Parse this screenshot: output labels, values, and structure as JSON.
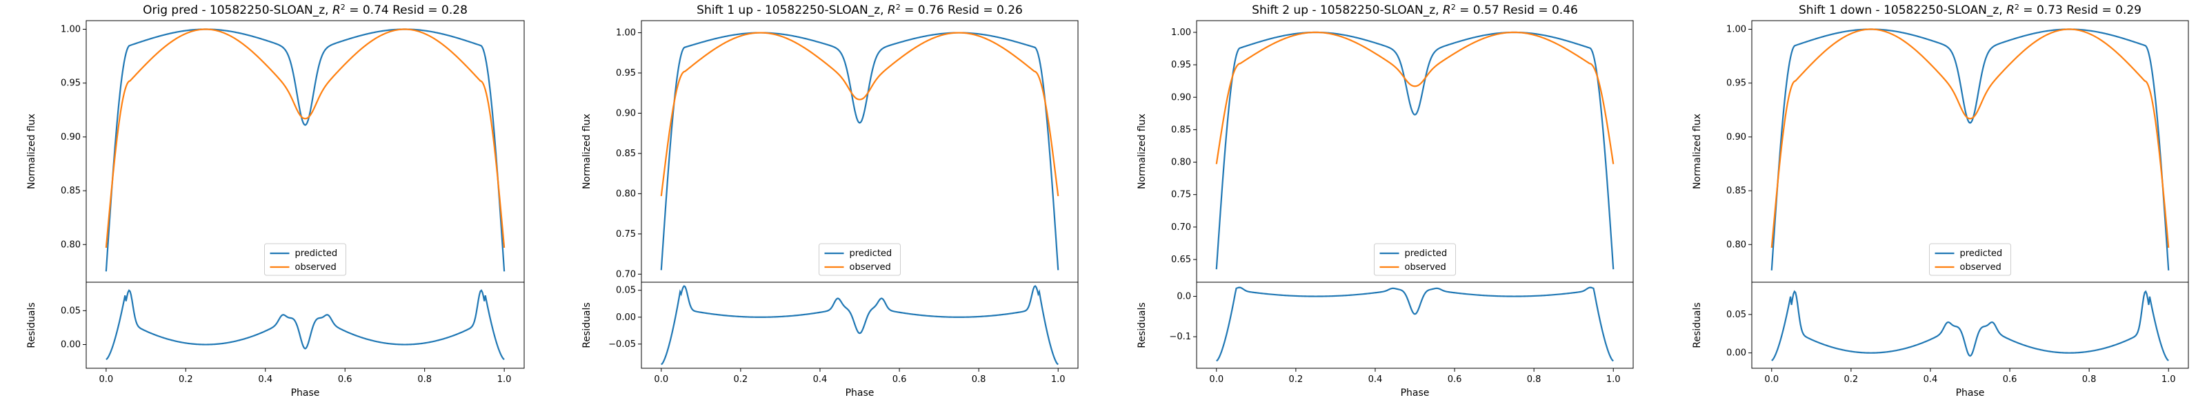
{
  "chart_data": [
    {
      "type": "line",
      "title": "Orig pred - 10582250-SLOAN_z, R² = 0.74 Resid = 0.28",
      "title_parts": {
        "pre": "Orig pred - 10582250-SLOAN_z, ",
        "r": "R",
        "sup": "2",
        "post": " = 0.74 Resid = 0.28"
      },
      "xlabel": "Phase",
      "top": {
        "ylabel": "Normalized flux",
        "ylim": [
          0.765,
          1.008
        ],
        "yticks": [
          0.8,
          0.85,
          0.9,
          0.95,
          1.0
        ],
        "ytick_labels": [
          "0.80",
          "0.85",
          "0.90",
          "0.95",
          "1.00"
        ],
        "series": [
          {
            "name": "predicted",
            "color": "#1f77b4",
            "dip": 0.911,
            "edge": 0.775,
            "shoulder": 0.985
          },
          {
            "name": "observed",
            "color": "#ff7f0e",
            "dip": 0.917,
            "edge": 0.797,
            "shoulder": 0.952
          }
        ]
      },
      "residual": {
        "ylabel": "Residuals",
        "ylim": [
          -0.035,
          0.092
        ],
        "yticks": [
          0.0,
          0.05
        ],
        "ytick_labels": [
          "0.00",
          "0.05"
        ],
        "dip": -0.006,
        "peak": 0.08,
        "shoulder": 0.04,
        "inner": 0.044,
        "edge": -0.022
      },
      "xlim": [
        -0.05,
        1.05
      ],
      "xticks": [
        0.0,
        0.2,
        0.4,
        0.6,
        0.8,
        1.0
      ],
      "xtick_labels": [
        "0.0",
        "0.2",
        "0.4",
        "0.6",
        "0.8",
        "1.0"
      ],
      "legend_location": "lower center"
    },
    {
      "type": "line",
      "title": "Shift 1 up - 10582250-SLOAN_z, R² = 0.76 Resid = 0.26",
      "title_parts": {
        "pre": "Shift 1 up - 10582250-SLOAN_z, ",
        "r": "R",
        "sup": "2",
        "post": " = 0.76 Resid = 0.26"
      },
      "xlabel": "Phase",
      "top": {
        "ylabel": "Normalized flux",
        "ylim": [
          0.69,
          1.015
        ],
        "yticks": [
          0.7,
          0.75,
          0.8,
          0.85,
          0.9,
          0.95,
          1.0
        ],
        "ytick_labels": [
          "0.70",
          "0.75",
          "0.80",
          "0.85",
          "0.90",
          "0.95",
          "1.00"
        ],
        "series": [
          {
            "name": "predicted",
            "color": "#1f77b4",
            "dip": 0.888,
            "edge": 0.705,
            "shoulder": 0.982
          },
          {
            "name": "observed",
            "color": "#ff7f0e",
            "dip": 0.917,
            "edge": 0.797,
            "shoulder": 0.952
          }
        ]
      },
      "residual": {
        "ylabel": "Residuals",
        "ylim": [
          -0.095,
          0.065
        ],
        "yticks": [
          -0.05,
          0.0,
          0.05
        ],
        "ytick_labels": [
          "−0.05",
          "0.00",
          "0.05"
        ],
        "dip": -0.03,
        "peak": 0.058,
        "shoulder": 0.018,
        "inner": 0.035,
        "edge": -0.088
      },
      "xlim": [
        -0.05,
        1.05
      ],
      "xticks": [
        0.0,
        0.2,
        0.4,
        0.6,
        0.8,
        1.0
      ],
      "xtick_labels": [
        "0.0",
        "0.2",
        "0.4",
        "0.6",
        "0.8",
        "1.0"
      ],
      "legend_location": "lower center"
    },
    {
      "type": "line",
      "title": "Shift 2 up - 10582250-SLOAN_z, R² = 0.57 Resid = 0.46",
      "title_parts": {
        "pre": "Shift 2 up - 10582250-SLOAN_z, ",
        "r": "R",
        "sup": "2",
        "post": " = 0.57 Resid = 0.46"
      },
      "xlabel": "Phase",
      "top": {
        "ylabel": "Normalized flux",
        "ylim": [
          0.615,
          1.018
        ],
        "yticks": [
          0.65,
          0.7,
          0.75,
          0.8,
          0.85,
          0.9,
          0.95,
          1.0
        ],
        "ytick_labels": [
          "0.65",
          "0.70",
          "0.75",
          "0.80",
          "0.85",
          "0.90",
          "0.95",
          "1.00"
        ],
        "series": [
          {
            "name": "predicted",
            "color": "#1f77b4",
            "dip": 0.873,
            "edge": 0.635,
            "shoulder": 0.976
          },
          {
            "name": "observed",
            "color": "#ff7f0e",
            "dip": 0.917,
            "edge": 0.797,
            "shoulder": 0.952
          }
        ]
      },
      "residual": {
        "ylabel": "Residuals",
        "ylim": [
          -0.178,
          0.035
        ],
        "yticks": [
          -0.1,
          0.0
        ],
        "ytick_labels": [
          "−0.1",
          "0.0"
        ],
        "dip": -0.044,
        "peak": 0.022,
        "shoulder": 0.018,
        "inner": 0.02,
        "edge": -0.16
      },
      "xlim": [
        -0.05,
        1.05
      ],
      "xticks": [
        0.0,
        0.2,
        0.4,
        0.6,
        0.8,
        1.0
      ],
      "xtick_labels": [
        "0.0",
        "0.2",
        "0.4",
        "0.6",
        "0.8",
        "1.0"
      ],
      "legend_location": "lower center"
    },
    {
      "type": "line",
      "title": "Shift 1 down - 10582250-SLOAN_z, R² = 0.73 Resid = 0.29",
      "title_parts": {
        "pre": "Shift 1 down - 10582250-SLOAN_z, ",
        "r": "R",
        "sup": "2",
        "post": " = 0.73 Resid = 0.29"
      },
      "xlabel": "Phase",
      "top": {
        "ylabel": "Normalized flux",
        "ylim": [
          0.765,
          1.008
        ],
        "yticks": [
          0.8,
          0.85,
          0.9,
          0.95,
          1.0
        ],
        "ytick_labels": [
          "0.80",
          "0.85",
          "0.90",
          "0.95",
          "1.00"
        ],
        "series": [
          {
            "name": "predicted",
            "color": "#1f77b4",
            "dip": 0.913,
            "edge": 0.776,
            "shoulder": 0.985
          },
          {
            "name": "observed",
            "color": "#ff7f0e",
            "dip": 0.917,
            "edge": 0.797,
            "shoulder": 0.952
          }
        ]
      },
      "residual": {
        "ylabel": "Residuals",
        "ylim": [
          -0.02,
          0.092
        ],
        "yticks": [
          0.0,
          0.05
        ],
        "ytick_labels": [
          "0.00",
          "0.05"
        ],
        "dip": -0.004,
        "peak": 0.08,
        "shoulder": 0.035,
        "inner": 0.04,
        "edge": -0.01
      },
      "xlim": [
        -0.05,
        1.05
      ],
      "xticks": [
        0.0,
        0.2,
        0.4,
        0.6,
        0.8,
        1.0
      ],
      "xtick_labels": [
        "0.0",
        "0.2",
        "0.4",
        "0.6",
        "0.8",
        "1.0"
      ],
      "legend_location": "lower center"
    }
  ]
}
